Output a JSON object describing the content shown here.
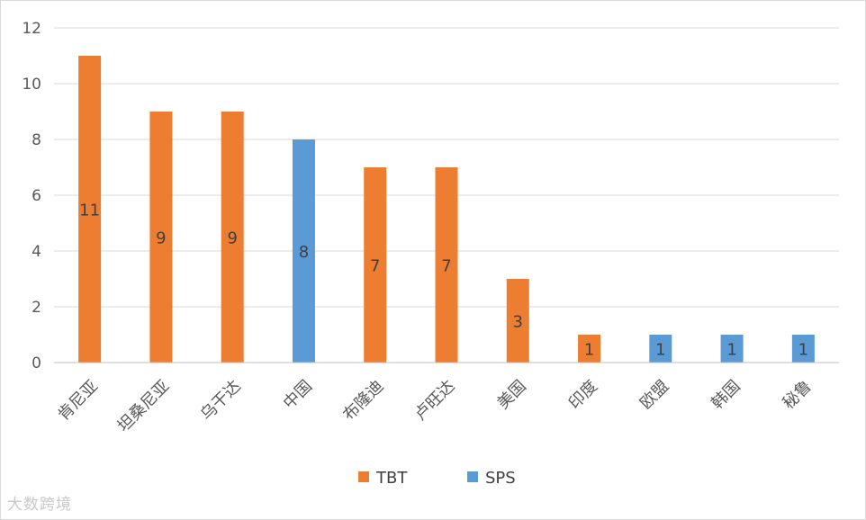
{
  "chart_data": {
    "type": "bar",
    "categories": [
      "肯尼亚",
      "坦桑尼亚",
      "乌干达",
      "中国",
      "布隆迪",
      "卢旺达",
      "美国",
      "印度",
      "欧盟",
      "韩国",
      "秘鲁"
    ],
    "values": [
      11,
      9,
      9,
      8,
      7,
      7,
      3,
      1,
      1,
      1,
      1
    ],
    "series_of_bar": [
      "TBT",
      "TBT",
      "TBT",
      "SPS",
      "TBT",
      "TBT",
      "TBT",
      "TBT",
      "SPS",
      "SPS",
      "SPS"
    ],
    "legend": [
      {
        "name": "TBT",
        "color": "#ED7D31"
      },
      {
        "name": "SPS",
        "color": "#5B9BD5"
      }
    ],
    "legend_position": "bottom",
    "ylim": [
      0,
      12
    ],
    "yticks": [
      0,
      2,
      4,
      6,
      8,
      10,
      12
    ],
    "grid": true,
    "data_labels": true,
    "title": "",
    "xlabel": "",
    "ylabel": ""
  },
  "watermark": "大数跨境"
}
